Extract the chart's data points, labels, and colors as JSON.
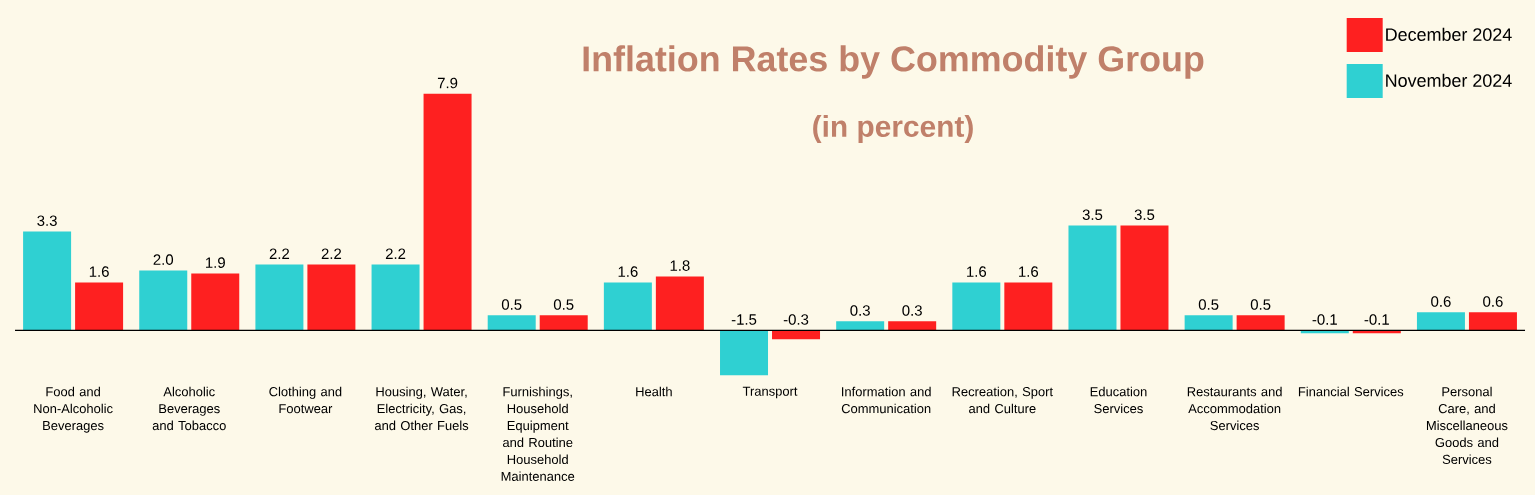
{
  "chart_data": {
    "type": "bar",
    "title": "Inflation Rates by Commodity Group",
    "subtitle": "(in percent)",
    "categories": [
      "Food and Non-Alcoholic Beverages",
      "Alcoholic Beverages and Tobacco",
      "Clothing and Footwear",
      "Housing, Water, Electricity, Gas, and Other Fuels",
      "Furnishings, Household Equipment and Routine Household Maintenance",
      "Health",
      "Transport",
      "Information and Communication",
      "Recreation, Sport and Culture",
      "Education Services",
      "Restaurants and Accommodation Services",
      "Financial Services",
      "Personal Care, and Miscellaneous Goods and Services"
    ],
    "series": [
      {
        "name": "November 2024",
        "color": "#2fd0d2",
        "values": [
          3.3,
          2.0,
          2.2,
          2.2,
          0.5,
          1.6,
          -1.5,
          0.3,
          1.6,
          3.5,
          0.5,
          -0.1,
          0.6
        ],
        "value_labels": [
          "3.3",
          "2.0",
          "2.2",
          "2.2",
          "0.5",
          "1.6",
          "-1.5",
          "0.3",
          "1.6",
          "3.5",
          "0.5",
          "-0.1",
          "0.6"
        ]
      },
      {
        "name": "December 2024",
        "color": "#fe2020",
        "values": [
          1.6,
          1.9,
          2.2,
          7.9,
          0.5,
          1.8,
          -0.3,
          0.3,
          1.6,
          3.5,
          0.5,
          -0.1,
          0.6
        ],
        "value_labels": [
          "1.6",
          "1.9",
          "2.2",
          "7.9",
          "0.5",
          "1.8",
          "-0.3",
          "0.3",
          "1.6",
          "3.5",
          "0.5",
          "-0.1",
          "0.6"
        ]
      }
    ],
    "legend": "top right"
  }
}
